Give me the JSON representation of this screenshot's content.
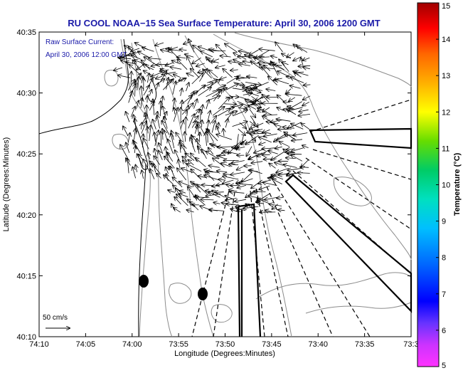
{
  "title": "RU COOL  NOAA−15  Sea Surface Temperature:  April 30, 2006 1200 GMT",
  "annotation": {
    "line1": "Raw Surface Current:",
    "line2": "April 30, 2006 12:00 GMT"
  },
  "scale_label": "50 cm/s",
  "x_axis": {
    "label": "Longitude (Degrees:Minutes)",
    "ticks": [
      "74:10",
      "74:05",
      "74:00",
      "73:55",
      "73:50",
      "73:45",
      "73:40",
      "73:35",
      "73:3"
    ]
  },
  "y_axis": {
    "label": "Latitude (Degrees:Minutes)",
    "ticks": [
      "40:35",
      "40:30",
      "40:25",
      "40:20",
      "40:15",
      "40:10"
    ]
  },
  "colorbar": {
    "label": "Temperature (°C)",
    "ticks": [
      "15",
      "14",
      "13",
      "12",
      "11",
      "10",
      "9",
      "8",
      "7",
      "6",
      "5"
    ]
  },
  "colors": {
    "title": "#1a1aa8",
    "annotation": "#1a1aa8",
    "contour": "#8c8c8c",
    "vector": "#000000"
  }
}
